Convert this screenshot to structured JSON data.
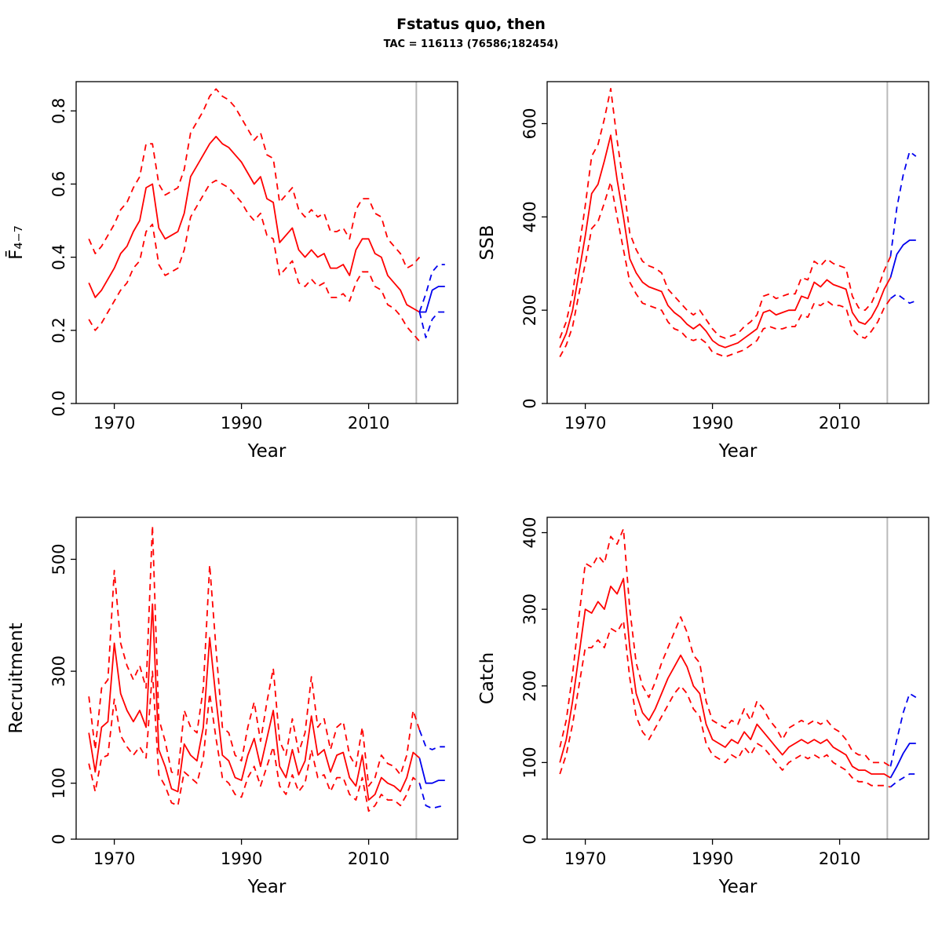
{
  "title": "Fstatus quo, then",
  "subtitle": "TAC = 116113 (76586;182454)",
  "colors": {
    "history": "#FF0000",
    "forecast": "#0000EE",
    "divider": "#BBBBBB",
    "axis": "#000000"
  },
  "chart_data": [
    {
      "type": "line",
      "name": "fbar",
      "title": "",
      "xlabel": "Year",
      "ylabel": "F̄₄₋₇",
      "xlim": [
        1964,
        2024
      ],
      "ylim": [
        0,
        0.88
      ],
      "xticks": [
        1970,
        1990,
        2010
      ],
      "yticks": [
        0,
        0.2,
        0.4,
        0.6,
        0.8
      ],
      "ytick_labels": [
        "0.0",
        "0.2",
        "0.4",
        "0.6",
        "0.8"
      ],
      "divider_x": 2017.5,
      "years": [
        1966,
        1967,
        1968,
        1969,
        1970,
        1971,
        1972,
        1973,
        1974,
        1975,
        1976,
        1977,
        1978,
        1979,
        1980,
        1981,
        1982,
        1983,
        1984,
        1985,
        1986,
        1987,
        1988,
        1989,
        1990,
        1991,
        1992,
        1993,
        1994,
        1995,
        1996,
        1997,
        1998,
        1999,
        2000,
        2001,
        2002,
        2003,
        2004,
        2005,
        2006,
        2007,
        2008,
        2009,
        2010,
        2011,
        2012,
        2013,
        2014,
        2015,
        2016,
        2017,
        2018
      ],
      "series": {
        "median": [
          0.33,
          0.29,
          0.31,
          0.34,
          0.37,
          0.41,
          0.43,
          0.47,
          0.5,
          0.59,
          0.6,
          0.48,
          0.45,
          0.46,
          0.47,
          0.52,
          0.62,
          0.65,
          0.68,
          0.71,
          0.73,
          0.71,
          0.7,
          0.68,
          0.66,
          0.63,
          0.6,
          0.62,
          0.56,
          0.55,
          0.44,
          0.46,
          0.48,
          0.42,
          0.4,
          0.42,
          0.4,
          0.41,
          0.37,
          0.37,
          0.38,
          0.35,
          0.42,
          0.45,
          0.45,
          0.41,
          0.4,
          0.35,
          0.33,
          0.31,
          0.27,
          0.26,
          0.25
        ],
        "upper": [
          0.45,
          0.41,
          0.43,
          0.46,
          0.49,
          0.53,
          0.55,
          0.59,
          0.62,
          0.71,
          0.71,
          0.6,
          0.57,
          0.58,
          0.59,
          0.64,
          0.74,
          0.77,
          0.8,
          0.84,
          0.86,
          0.84,
          0.83,
          0.81,
          0.78,
          0.75,
          0.72,
          0.74,
          0.68,
          0.67,
          0.55,
          0.57,
          0.59,
          0.53,
          0.51,
          0.53,
          0.51,
          0.52,
          0.47,
          0.47,
          0.48,
          0.45,
          0.53,
          0.56,
          0.56,
          0.52,
          0.51,
          0.45,
          0.43,
          0.41,
          0.37,
          0.38,
          0.4
        ],
        "lower": [
          0.23,
          0.2,
          0.22,
          0.25,
          0.28,
          0.31,
          0.33,
          0.37,
          0.39,
          0.47,
          0.49,
          0.38,
          0.35,
          0.36,
          0.37,
          0.42,
          0.51,
          0.54,
          0.57,
          0.6,
          0.61,
          0.6,
          0.59,
          0.57,
          0.55,
          0.52,
          0.5,
          0.52,
          0.46,
          0.45,
          0.35,
          0.37,
          0.39,
          0.33,
          0.32,
          0.34,
          0.32,
          0.33,
          0.29,
          0.29,
          0.3,
          0.28,
          0.33,
          0.36,
          0.36,
          0.32,
          0.31,
          0.27,
          0.26,
          0.24,
          0.21,
          0.19,
          0.17
        ]
      },
      "forecast": {
        "years": [
          2018,
          2019,
          2020,
          2021,
          2022
        ],
        "median": [
          0.25,
          0.25,
          0.31,
          0.32,
          0.32
        ],
        "upper": [
          0.25,
          0.3,
          0.36,
          0.38,
          0.38
        ],
        "lower": [
          0.25,
          0.18,
          0.23,
          0.25,
          0.25
        ]
      }
    },
    {
      "type": "line",
      "name": "ssb",
      "title": "",
      "xlabel": "Year",
      "ylabel": "SSB",
      "xlim": [
        1964,
        2024
      ],
      "ylim": [
        0,
        690
      ],
      "xticks": [
        1970,
        1990,
        2010
      ],
      "yticks": [
        0,
        200,
        400,
        600
      ],
      "ytick_labels": [
        "0",
        "200",
        "400",
        "600"
      ],
      "divider_x": 2017.5,
      "years": [
        1966,
        1967,
        1968,
        1969,
        1970,
        1971,
        1972,
        1973,
        1974,
        1975,
        1976,
        1977,
        1978,
        1979,
        1980,
        1981,
        1982,
        1983,
        1984,
        1985,
        1986,
        1987,
        1988,
        1989,
        1990,
        1991,
        1992,
        1993,
        1994,
        1995,
        1996,
        1997,
        1998,
        1999,
        2000,
        2001,
        2002,
        2003,
        2004,
        2005,
        2006,
        2007,
        2008,
        2009,
        2010,
        2011,
        2012,
        2013,
        2014,
        2015,
        2016,
        2017,
        2018
      ],
      "series": {
        "median": [
          120,
          150,
          200,
          280,
          360,
          450,
          470,
          520,
          575,
          480,
          400,
          310,
          280,
          260,
          250,
          245,
          240,
          210,
          195,
          185,
          170,
          160,
          170,
          155,
          135,
          125,
          120,
          125,
          130,
          140,
          150,
          160,
          195,
          200,
          190,
          195,
          200,
          200,
          230,
          225,
          260,
          250,
          265,
          255,
          250,
          245,
          195,
          175,
          170,
          185,
          210,
          245,
          270
        ],
        "upper": [
          140,
          175,
          235,
          330,
          425,
          530,
          555,
          610,
          675,
          565,
          470,
          365,
          330,
          305,
          295,
          290,
          280,
          245,
          230,
          215,
          200,
          190,
          200,
          180,
          160,
          145,
          140,
          145,
          150,
          165,
          175,
          190,
          230,
          235,
          225,
          230,
          235,
          235,
          270,
          265,
          305,
          295,
          310,
          300,
          295,
          290,
          230,
          205,
          200,
          215,
          245,
          285,
          315
        ],
        "lower": [
          100,
          125,
          165,
          235,
          300,
          375,
          390,
          430,
          475,
          400,
          330,
          260,
          235,
          215,
          210,
          205,
          200,
          175,
          160,
          155,
          140,
          135,
          140,
          130,
          110,
          105,
          100,
          105,
          110,
          115,
          125,
          135,
          160,
          165,
          160,
          160,
          165,
          165,
          190,
          185,
          215,
          210,
          220,
          210,
          210,
          205,
          160,
          145,
          140,
          155,
          175,
          205,
          225
        ]
      },
      "forecast": {
        "years": [
          2018,
          2019,
          2020,
          2021,
          2022
        ],
        "median": [
          270,
          320,
          340,
          350,
          350
        ],
        "upper": [
          315,
          420,
          490,
          540,
          530
        ],
        "lower": [
          225,
          235,
          225,
          215,
          220
        ]
      }
    },
    {
      "type": "line",
      "name": "recruitment",
      "title": "",
      "xlabel": "Year",
      "ylabel": "Recruitment",
      "xlim": [
        1964,
        2024
      ],
      "ylim": [
        0,
        575
      ],
      "xticks": [
        1970,
        1990,
        2010
      ],
      "yticks": [
        0,
        100,
        300,
        500
      ],
      "ytick_labels": [
        "0",
        "100",
        "300",
        "500"
      ],
      "divider_x": 2017.5,
      "years": [
        1966,
        1967,
        1968,
        1969,
        1970,
        1971,
        1972,
        1973,
        1974,
        1975,
        1976,
        1977,
        1978,
        1979,
        1980,
        1981,
        1982,
        1983,
        1984,
        1985,
        1986,
        1987,
        1988,
        1989,
        1990,
        1991,
        1992,
        1993,
        1994,
        1995,
        1996,
        1997,
        1998,
        1999,
        2000,
        2001,
        2002,
        2003,
        2004,
        2005,
        2006,
        2007,
        2008,
        2009,
        2010,
        2011,
        2012,
        2013,
        2014,
        2015,
        2016,
        2017,
        2018
      ],
      "series": {
        "median": [
          190,
          120,
          200,
          210,
          350,
          260,
          230,
          210,
          230,
          200,
          420,
          160,
          130,
          90,
          85,
          170,
          150,
          140,
          200,
          360,
          250,
          150,
          140,
          110,
          105,
          150,
          180,
          130,
          180,
          230,
          130,
          110,
          160,
          115,
          140,
          220,
          150,
          160,
          120,
          150,
          155,
          110,
          95,
          150,
          70,
          80,
          110,
          100,
          95,
          85,
          110,
          155,
          145
        ],
        "upper": [
          255,
          160,
          270,
          285,
          480,
          350,
          310,
          285,
          310,
          270,
          560,
          215,
          175,
          120,
          115,
          230,
          200,
          190,
          270,
          490,
          340,
          200,
          190,
          150,
          140,
          200,
          245,
          175,
          245,
          305,
          175,
          150,
          215,
          155,
          190,
          290,
          200,
          215,
          160,
          200,
          210,
          150,
          130,
          200,
          95,
          110,
          150,
          135,
          130,
          115,
          150,
          230,
          195
        ],
        "lower": [
          135,
          85,
          145,
          150,
          250,
          185,
          165,
          150,
          165,
          145,
          300,
          115,
          95,
          65,
          60,
          120,
          110,
          100,
          145,
          260,
          180,
          110,
          100,
          80,
          75,
          110,
          130,
          95,
          130,
          165,
          95,
          80,
          115,
          85,
          100,
          160,
          110,
          115,
          85,
          110,
          110,
          80,
          70,
          110,
          50,
          60,
          80,
          70,
          70,
          60,
          80,
          110,
          100
        ]
      },
      "forecast": {
        "years": [
          2018,
          2019,
          2020,
          2021,
          2022
        ],
        "median": [
          145,
          100,
          100,
          105,
          105
        ],
        "upper": [
          195,
          165,
          160,
          165,
          165
        ],
        "lower": [
          100,
          60,
          55,
          58,
          60
        ]
      }
    },
    {
      "type": "line",
      "name": "catch",
      "title": "",
      "xlabel": "Year",
      "ylabel": "Catch",
      "xlim": [
        1964,
        2024
      ],
      "ylim": [
        0,
        420
      ],
      "xticks": [
        1970,
        1990,
        2010
      ],
      "yticks": [
        0,
        100,
        200,
        300,
        400
      ],
      "ytick_labels": [
        "0",
        "100",
        "200",
        "300",
        "400"
      ],
      "divider_x": 2017.5,
      "years": [
        1966,
        1967,
        1968,
        1969,
        1970,
        1971,
        1972,
        1973,
        1974,
        1975,
        1976,
        1977,
        1978,
        1979,
        1980,
        1981,
        1982,
        1983,
        1984,
        1985,
        1986,
        1987,
        1988,
        1989,
        1990,
        1991,
        1992,
        1993,
        1994,
        1995,
        1996,
        1997,
        1998,
        1999,
        2000,
        2001,
        2002,
        2003,
        2004,
        2005,
        2006,
        2007,
        2008,
        2009,
        2010,
        2011,
        2012,
        2013,
        2014,
        2015,
        2016,
        2017,
        2018
      ],
      "series": {
        "median": [
          100,
          130,
          180,
          240,
          300,
          295,
          310,
          300,
          330,
          320,
          340,
          250,
          190,
          165,
          155,
          170,
          190,
          210,
          225,
          240,
          225,
          200,
          190,
          150,
          130,
          125,
          120,
          130,
          125,
          140,
          130,
          150,
          140,
          130,
          120,
          110,
          120,
          125,
          130,
          125,
          130,
          125,
          130,
          120,
          115,
          110,
          95,
          90,
          90,
          85,
          85,
          85,
          80
        ],
        "upper": [
          120,
          155,
          215,
          290,
          360,
          355,
          370,
          360,
          395,
          385,
          405,
          300,
          230,
          200,
          185,
          205,
          230,
          250,
          270,
          290,
          270,
          240,
          230,
          180,
          155,
          150,
          145,
          155,
          150,
          170,
          155,
          180,
          170,
          155,
          145,
          130,
          145,
          150,
          155,
          150,
          155,
          150,
          155,
          145,
          140,
          130,
          115,
          110,
          110,
          100,
          100,
          100,
          95
        ],
        "lower": [
          85,
          110,
          150,
          200,
          250,
          250,
          260,
          250,
          275,
          270,
          285,
          210,
          160,
          140,
          130,
          145,
          160,
          175,
          190,
          200,
          190,
          170,
          160,
          125,
          110,
          105,
          100,
          110,
          105,
          120,
          110,
          125,
          120,
          110,
          100,
          90,
          100,
          105,
          110,
          105,
          110,
          105,
          110,
          100,
          95,
          90,
          80,
          75,
          75,
          70,
          70,
          70,
          68
        ]
      },
      "forecast": {
        "years": [
          2018,
          2019,
          2020,
          2021,
          2022
        ],
        "median": [
          80,
          95,
          112,
          125,
          125
        ],
        "upper": [
          95,
          130,
          165,
          190,
          185
        ],
        "lower": [
          68,
          75,
          80,
          85,
          85
        ]
      }
    }
  ]
}
